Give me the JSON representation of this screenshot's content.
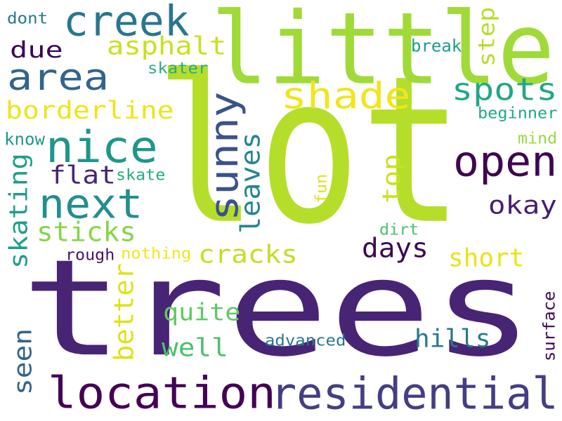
{
  "words": [
    {
      "text": "lot",
      "color": "#b5de2b"
    },
    {
      "text": "trees",
      "color": "#482475"
    },
    {
      "text": "little",
      "color": "#a0da39"
    },
    {
      "text": "residential",
      "color": "#433e85"
    },
    {
      "text": "location",
      "color": "#440154"
    },
    {
      "text": "area",
      "color": "#33638d"
    },
    {
      "text": "creek",
      "color": "#2a768e"
    },
    {
      "text": "nice",
      "color": "#1f968b"
    },
    {
      "text": "next",
      "color": "#218f8d"
    },
    {
      "text": "sunny",
      "color": "#3b528b"
    },
    {
      "text": "open",
      "color": "#3e0751"
    },
    {
      "text": "shade",
      "color": "#f1e51d"
    },
    {
      "text": "spots",
      "color": "#22a785"
    },
    {
      "text": "borderline",
      "color": "#ece51b"
    },
    {
      "text": "asphalt",
      "color": "#c8e020"
    },
    {
      "text": "due",
      "color": "#3e0751"
    },
    {
      "text": "flat",
      "color": "#482475"
    },
    {
      "text": "skating",
      "color": "#1f9e89"
    },
    {
      "text": "sticks",
      "color": "#86d549"
    },
    {
      "text": "leaves",
      "color": "#25858e"
    },
    {
      "text": "top",
      "color": "#cae11f"
    },
    {
      "text": "okay",
      "color": "#481f70"
    },
    {
      "text": "days",
      "color": "#3e0751"
    },
    {
      "text": "cracks",
      "color": "#c0df25"
    },
    {
      "text": "short",
      "color": "#e7e419"
    },
    {
      "text": "better",
      "color": "#dde318"
    },
    {
      "text": "quite",
      "color": "#5ec962"
    },
    {
      "text": "well",
      "color": "#4ac16d"
    },
    {
      "text": "hills",
      "color": "#2a788e"
    },
    {
      "text": "seen",
      "color": "#33638d"
    },
    {
      "text": "step",
      "color": "#b5de2b"
    },
    {
      "text": "break",
      "color": "#1e9c89"
    },
    {
      "text": "beginner",
      "color": "#22a785"
    },
    {
      "text": "mind",
      "color": "#9dd93b"
    },
    {
      "text": "know",
      "color": "#1f968b"
    },
    {
      "text": "skate",
      "color": "#26ad81"
    },
    {
      "text": "skater",
      "color": "#26ad81"
    },
    {
      "text": "dont",
      "color": "#2a768e"
    },
    {
      "text": "fun",
      "color": "#dde318"
    },
    {
      "text": "dirt",
      "color": "#4ac16d"
    },
    {
      "text": "rough",
      "color": "#471365"
    },
    {
      "text": "nothing",
      "color": "#f1e51d"
    },
    {
      "text": "advanced",
      "color": "#2a788e"
    },
    {
      "text": "surface",
      "color": "#3e0751"
    }
  ]
}
